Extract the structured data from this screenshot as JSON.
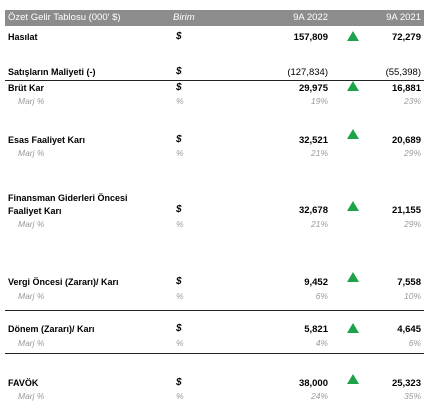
{
  "header": {
    "title": "Özet Gelir Tablosu (000' $)",
    "unit": "Birim",
    "col1": "9A 2022",
    "col2": "9A 2021"
  },
  "rows": [
    {
      "label": "Hasılat",
      "unit": "$",
      "v1": "157,809",
      "v2": "72,279",
      "trend": "up"
    },
    {
      "label": "Satışların Maliyeti (-)",
      "unit": "$",
      "v1": "(127,834)",
      "v2": "(55,398)"
    },
    {
      "label": "Brüt Kar",
      "unit": "$",
      "v1": "29,975",
      "v2": "16,881",
      "trend": "up",
      "sub": {
        "label": "Marj %",
        "unit": "%",
        "v1": "19%",
        "v2": "23%"
      }
    },
    {
      "label": "Esas Faaliyet Karı",
      "unit": "$",
      "v1": "32,521",
      "v2": "20,689",
      "trend": "up",
      "sub": {
        "label": "Marj %",
        "unit": "%",
        "v1": "21%",
        "v2": "29%"
      }
    },
    {
      "label": "Finansman Giderleri Öncesi Faaliyet Karı",
      "unit": "$",
      "v1": "32,678",
      "v2": "21,155",
      "trend": "up",
      "sub": {
        "label": "Marj %",
        "unit": "%",
        "v1": "21%",
        "v2": "29%"
      }
    },
    {
      "label": "Vergi Öncesi (Zararı)/ Karı",
      "unit": "$",
      "v1": "9,452",
      "v2": "7,558",
      "trend": "up",
      "sub": {
        "label": "Marj %",
        "unit": "%",
        "v1": "6%",
        "v2": "10%"
      }
    },
    {
      "label": "Dönem (Zararı)/ Karı",
      "unit": "$",
      "v1": "5,821",
      "v2": "4,645",
      "trend": "up",
      "sub": {
        "label": "Marj %",
        "unit": "%",
        "v1": "4%",
        "v2": "6%"
      }
    },
    {
      "label": "FAVÖK",
      "unit": "$",
      "v1": "38,000",
      "v2": "25,323",
      "trend": "up",
      "sub": {
        "label": "Marj %",
        "unit": "%",
        "v1": "24%",
        "v2": "35%"
      }
    }
  ],
  "colors": {
    "header_bg": "#8c8c8c",
    "up_arrow": "#1fa34a",
    "muted_text": "#9a9a9a"
  }
}
